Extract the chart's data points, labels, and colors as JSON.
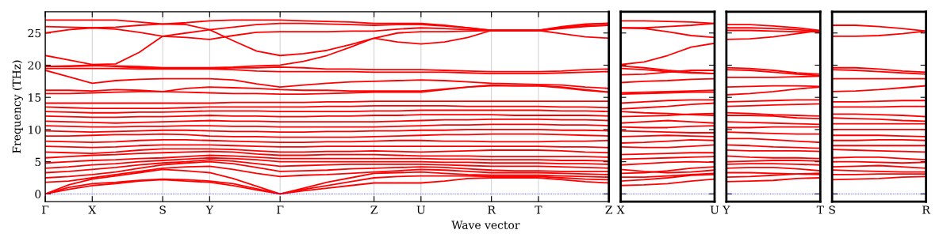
{
  "chart_data": [
    {
      "type": "line",
      "ylabel": "Frequency (THz)",
      "xlabel": "Wave vector",
      "categories": [
        "Γ",
        null,
        "X",
        null,
        null,
        "S",
        null,
        "Y",
        null,
        null,
        "Γ",
        null,
        null,
        null,
        "Z",
        null,
        "U",
        null,
        null,
        "R",
        null,
        "T",
        null,
        null,
        "Z"
      ],
      "ylim": [
        -1.2,
        28.3
      ],
      "yticks": [
        0,
        5,
        10,
        15,
        20,
        25
      ],
      "grid": "x",
      "line_style": "solid",
      "ref_lines": [
        {
          "axis": "y",
          "value": 0,
          "color": "#0000ff",
          "line_style": "dotted"
        }
      ],
      "series": [
        {
          "color": "#ff0000",
          "values": [
            0,
            0.7,
            1.3,
            1.6,
            2.0,
            2.2,
            2.0,
            1.8,
            1.3,
            0.6,
            0,
            0.5,
            0.9,
            1.3,
            1.7,
            1.7,
            1.7,
            2.0,
            2.4,
            2.5,
            2.5,
            2.5,
            2.2,
            1.9,
            1.7
          ]
        },
        {
          "color": "#ff0000",
          "values": [
            0,
            1.0,
            1.6,
            1.8,
            2.1,
            2.3,
            2.2,
            2.0,
            1.6,
            0.8,
            0,
            0.7,
            1.3,
            1.9,
            2.5,
            2.7,
            2.8,
            2.8,
            2.8,
            2.7,
            2.7,
            2.7,
            2.5,
            2.3,
            2.2
          ]
        },
        {
          "color": "#ff0000",
          "values": [
            0,
            1.4,
            2.3,
            2.8,
            3.3,
            3.8,
            3.6,
            3.3,
            2.4,
            1.2,
            0,
            0.9,
            1.8,
            2.5,
            3.2,
            3.3,
            3.4,
            3.2,
            3.0,
            2.9,
            2.9,
            2.9,
            2.8,
            2.7,
            2.6
          ]
        },
        {
          "color": "#ff0000",
          "values": [
            1.8,
            2.0,
            2.5,
            3.0,
            3.5,
            4.0,
            4.2,
            4.3,
            3.8,
            3.2,
            2.7,
            2.9,
            3.0,
            3.2,
            3.4,
            3.6,
            3.8,
            3.7,
            3.5,
            3.3,
            3.3,
            3.3,
            3.2,
            3.1,
            3.0
          ]
        },
        {
          "color": "#ff0000",
          "values": [
            2.5,
            2.7,
            3.0,
            3.4,
            4.0,
            4.5,
            4.8,
            5.0,
            4.7,
            4.1,
            3.5,
            3.6,
            3.7,
            3.9,
            4.0,
            4.1,
            4.2,
            4.1,
            3.9,
            3.7,
            3.6,
            3.6,
            3.5,
            3.5,
            3.5
          ]
        },
        {
          "color": "#ff0000",
          "values": [
            3.3,
            3.5,
            3.8,
            4.1,
            4.5,
            4.8,
            5.0,
            5.3,
            5.1,
            4.7,
            4.3,
            4.4,
            4.5,
            4.6,
            4.6,
            4.6,
            4.6,
            4.5,
            4.4,
            4.3,
            4.3,
            4.3,
            4.2,
            4.1,
            4.0
          ]
        },
        {
          "color": "#ff0000",
          "values": [
            4.0,
            4.2,
            4.5,
            4.7,
            5.0,
            5.2,
            5.4,
            5.6,
            5.5,
            5.3,
            5.0,
            5.0,
            5.0,
            5.0,
            5.0,
            5.0,
            5.0,
            4.9,
            4.9,
            4.8,
            4.8,
            4.8,
            4.7,
            4.7,
            4.6
          ]
        },
        {
          "color": "#ff0000",
          "values": [
            4.8,
            5.0,
            5.2,
            5.3,
            5.5,
            5.6,
            5.8,
            6.0,
            5.9,
            5.7,
            5.5,
            5.5,
            5.5,
            5.5,
            5.5,
            5.5,
            5.5,
            5.4,
            5.4,
            5.3,
            5.3,
            5.3,
            5.2,
            5.2,
            5.1
          ]
        },
        {
          "color": "#ff0000",
          "values": [
            5.6,
            5.8,
            6.0,
            6.1,
            6.3,
            6.4,
            6.5,
            6.6,
            6.5,
            6.2,
            6.0,
            6.0,
            6.1,
            6.1,
            6.1,
            6.0,
            5.9,
            5.9,
            5.9,
            5.8,
            5.8,
            5.8,
            5.8,
            5.8,
            5.7
          ]
        },
        {
          "color": "#ff0000",
          "values": [
            6.5,
            6.4,
            6.3,
            6.5,
            6.8,
            7.0,
            7.0,
            7.0,
            6.9,
            6.7,
            6.5,
            6.5,
            6.6,
            6.6,
            6.7,
            6.6,
            6.5,
            6.6,
            6.7,
            6.8,
            6.8,
            6.8,
            6.7,
            6.5,
            6.4
          ]
        },
        {
          "color": "#ff0000",
          "values": [
            7.4,
            7.3,
            7.2,
            7.3,
            7.5,
            7.6,
            7.6,
            7.6,
            7.5,
            7.4,
            7.3,
            7.3,
            7.4,
            7.4,
            7.4,
            7.4,
            7.4,
            7.4,
            7.4,
            7.4,
            7.4,
            7.4,
            7.3,
            7.3,
            7.2
          ]
        },
        {
          "color": "#ff0000",
          "values": [
            8.2,
            8.1,
            8.0,
            8.1,
            8.3,
            8.4,
            8.4,
            8.3,
            8.2,
            8.1,
            8.0,
            8.0,
            8.1,
            8.1,
            8.2,
            8.3,
            8.3,
            8.2,
            8.2,
            8.1,
            8.1,
            8.1,
            8.2,
            8.2,
            8.3
          ]
        },
        {
          "color": "#ff0000",
          "values": [
            9.0,
            9.0,
            9.1,
            9.2,
            9.2,
            9.3,
            9.2,
            9.0,
            8.9,
            8.9,
            8.8,
            8.8,
            8.8,
            8.8,
            8.9,
            9.0,
            9.1,
            9.2,
            9.2,
            9.3,
            9.3,
            9.3,
            9.2,
            9.1,
            9.0
          ]
        },
        {
          "color": "#ff0000",
          "values": [
            9.8,
            9.7,
            9.6,
            9.7,
            9.8,
            9.9,
            9.9,
            9.8,
            9.7,
            9.7,
            9.6,
            9.6,
            9.7,
            9.7,
            9.8,
            9.8,
            9.9,
            9.9,
            10.0,
            10.0,
            10.0,
            10.0,
            9.9,
            9.9,
            9.8
          ]
        },
        {
          "color": "#ff0000",
          "values": [
            10.6,
            10.5,
            10.4,
            10.4,
            10.5,
            10.5,
            10.6,
            10.6,
            10.5,
            10.5,
            10.4,
            10.4,
            10.4,
            10.4,
            10.4,
            10.5,
            10.6,
            10.7,
            10.7,
            10.8,
            10.8,
            10.8,
            10.7,
            10.7,
            10.6
          ]
        },
        {
          "color": "#ff0000",
          "values": [
            11.3,
            11.2,
            11.1,
            11.0,
            11.1,
            11.2,
            11.3,
            11.4,
            11.3,
            11.3,
            11.2,
            11.2,
            11.2,
            11.2,
            11.2,
            11.3,
            11.4,
            11.5,
            11.5,
            11.6,
            11.6,
            11.6,
            11.5,
            11.5,
            11.4
          ]
        },
        {
          "color": "#ff0000",
          "values": [
            12.1,
            12.0,
            11.9,
            11.9,
            12.0,
            12.0,
            12.1,
            12.2,
            12.1,
            12.1,
            12.0,
            12.0,
            12.1,
            12.1,
            12.2,
            12.2,
            12.3,
            12.3,
            12.3,
            12.3,
            12.2,
            12.2,
            12.2,
            12.2,
            12.1
          ]
        },
        {
          "color": "#ff0000",
          "values": [
            12.8,
            12.7,
            12.6,
            12.6,
            12.7,
            12.7,
            12.8,
            12.9,
            12.9,
            12.9,
            12.8,
            12.8,
            12.8,
            12.8,
            12.9,
            12.9,
            13.0,
            13.0,
            13.0,
            13.0,
            13.0,
            13.0,
            12.9,
            12.9,
            12.8
          ]
        },
        {
          "color": "#ff0000",
          "values": [
            13.5,
            13.4,
            13.3,
            13.3,
            13.3,
            13.3,
            13.4,
            13.5,
            13.5,
            13.5,
            13.5,
            13.5,
            13.6,
            13.6,
            13.7,
            13.7,
            13.7,
            13.7,
            13.6,
            13.6,
            13.6,
            13.6,
            13.5,
            13.5,
            13.4
          ]
        },
        {
          "color": "#ff0000",
          "values": [
            14.1,
            14.1,
            14.1,
            14.1,
            14.1,
            14.1,
            14.1,
            14.1,
            14.2,
            14.2,
            14.2,
            14.2,
            14.3,
            14.3,
            14.4,
            14.4,
            14.4,
            14.4,
            14.4,
            14.4,
            14.4,
            14.4,
            14.4,
            14.4,
            14.4
          ]
        },
        {
          "color": "#ff0000",
          "values": [
            15.6,
            15.6,
            15.7,
            15.8,
            15.9,
            15.9,
            16.4,
            16.6,
            16.5,
            16.4,
            16.2,
            16.1,
            16.1,
            16.0,
            16.0,
            16.0,
            16.0,
            16.3,
            16.6,
            16.8,
            16.8,
            16.8,
            16.5,
            16.1,
            15.8
          ]
        },
        {
          "color": "#ff0000",
          "values": [
            16.1,
            16.1,
            16.0,
            16.2,
            16.1,
            15.9,
            15.8,
            15.7,
            15.6,
            15.6,
            15.5,
            15.5,
            15.6,
            15.7,
            15.8,
            15.8,
            15.8,
            16.2,
            16.6,
            16.9,
            16.8,
            16.8,
            16.6,
            16.2,
            15.8
          ]
        },
        {
          "color": "#ff0000",
          "values": [
            19.2,
            18.2,
            17.2,
            17.6,
            17.8,
            17.9,
            17.9,
            17.9,
            17.7,
            17.1,
            16.6,
            16.9,
            17.2,
            17.4,
            17.5,
            17.6,
            17.7,
            17.6,
            17.4,
            17.2,
            17.1,
            17.0,
            16.9,
            16.6,
            16.4
          ]
        },
        {
          "color": "#ff0000",
          "values": [
            19.5,
            19.5,
            19.5,
            19.5,
            19.4,
            19.4,
            19.4,
            19.4,
            19.3,
            19.1,
            19.0,
            19.0,
            19.0,
            19.0,
            18.9,
            18.9,
            18.9,
            18.9,
            18.8,
            18.7,
            18.7,
            18.7,
            18.8,
            18.9,
            19.0
          ]
        },
        {
          "color": "#ff0000",
          "values": [
            19.8,
            19.9,
            20.0,
            19.8,
            19.6,
            19.5,
            19.5,
            19.5,
            19.6,
            19.6,
            19.7,
            19.6,
            19.4,
            19.4,
            19.3,
            19.3,
            19.3,
            19.2,
            19.1,
            19.0,
            19.0,
            19.0,
            19.1,
            19.3,
            19.4
          ]
        },
        {
          "color": "#ff0000",
          "values": [
            19.8,
            19.8,
            19.9,
            19.9,
            19.8,
            19.6,
            19.6,
            19.6,
            19.7,
            19.9,
            20.0,
            20.6,
            21.5,
            22.8,
            24.2,
            25.0,
            25.2,
            25.2,
            25.3,
            25.4,
            25.4,
            25.4,
            25.9,
            26.3,
            26.5
          ]
        },
        {
          "color": "#ff0000",
          "values": [
            21.5,
            20.8,
            20.1,
            20.2,
            22.0,
            24.5,
            25.0,
            25.5,
            23.8,
            22.2,
            21.5,
            21.8,
            22.3,
            23.2,
            24.2,
            23.6,
            23.3,
            23.6,
            24.3,
            25.4,
            25.4,
            25.4,
            24.9,
            24.4,
            24.2
          ]
        },
        {
          "color": "#ff0000",
          "values": [
            25.0,
            25.5,
            25.8,
            25.6,
            25.1,
            24.5,
            24.3,
            24.0,
            24.6,
            25.1,
            25.2,
            25.2,
            25.2,
            25.3,
            25.3,
            25.6,
            25.8,
            25.7,
            25.5,
            25.4,
            25.4,
            25.4,
            25.7,
            26.0,
            26.2
          ]
        },
        {
          "color": "#ff0000",
          "values": [
            26.0,
            25.9,
            25.8,
            25.9,
            26.2,
            26.4,
            26.3,
            25.5,
            25.9,
            26.3,
            26.5,
            26.5,
            26.4,
            26.3,
            26.2,
            26.3,
            26.3,
            26.1,
            25.8,
            25.4,
            25.4,
            25.4,
            25.8,
            26.1,
            26.2
          ]
        },
        {
          "color": "#ff0000",
          "values": [
            27.0,
            27.0,
            27.0,
            27.0,
            26.7,
            26.4,
            26.6,
            26.9,
            27.0,
            27.0,
            27.0,
            26.9,
            26.8,
            26.7,
            26.5,
            26.5,
            26.5,
            26.2,
            25.8,
            25.4,
            25.4,
            25.4,
            26.0,
            26.4,
            26.5
          ]
        }
      ]
    },
    {
      "type": "line",
      "categories": [
        "X",
        null,
        null,
        null,
        "U"
      ],
      "ylim": [
        -1.2,
        28.3
      ],
      "yticks": [
        0,
        5,
        10,
        15,
        20,
        25
      ],
      "tick_labels": "x",
      "line_style": "solid",
      "ref_lines": [
        {
          "axis": "y",
          "value": 0,
          "color": "#0000ff",
          "line_style": "dotted"
        }
      ],
      "series": [
        {
          "color": "#ff0000",
          "values": [
            26.9,
            26.9,
            26.8,
            26.7,
            26.5
          ]
        },
        {
          "color": "#ff0000",
          "values": [
            25.8,
            25.8,
            26.0,
            26.2,
            26.5
          ]
        },
        {
          "color": "#ff0000",
          "values": [
            25.8,
            25.7,
            25.2,
            24.6,
            24.3
          ]
        },
        {
          "color": "#ff0000",
          "values": [
            20.1,
            20.5,
            21.5,
            22.8,
            23.4
          ]
        },
        {
          "color": "#ff0000",
          "values": [
            19.9,
            19.6,
            19.2,
            18.9,
            18.7
          ]
        },
        {
          "color": "#ff0000",
          "values": [
            19.5,
            19.3,
            19.0,
            18.8,
            18.7
          ]
        },
        {
          "color": "#ff0000",
          "values": [
            18.5,
            18.6,
            18.9,
            19.2,
            19.2
          ]
        },
        {
          "color": "#ff0000",
          "values": [
            17.3,
            17.5,
            17.6,
            17.8,
            17.9
          ]
        },
        {
          "color": "#ff0000",
          "values": [
            15.7,
            15.8,
            15.9,
            16.0,
            16.1
          ]
        },
        {
          "color": "#ff0000",
          "values": [
            15.5,
            15.6,
            15.7,
            15.8,
            15.8
          ]
        },
        {
          "color": "#ff0000",
          "values": [
            14.1,
            14.3,
            14.5,
            14.6,
            14.6
          ]
        },
        {
          "color": "#ff0000",
          "values": [
            13.2,
            13.4,
            13.6,
            13.9,
            14.1
          ]
        },
        {
          "color": "#ff0000",
          "values": [
            12.8,
            12.6,
            12.5,
            12.3,
            12.2
          ]
        },
        {
          "color": "#ff0000",
          "values": [
            12.0,
            12.1,
            12.2,
            12.4,
            12.5
          ]
        },
        {
          "color": "#ff0000",
          "values": [
            11.0,
            11.2,
            11.4,
            11.2,
            11.0
          ]
        },
        {
          "color": "#ff0000",
          "values": [
            10.4,
            10.3,
            10.3,
            10.5,
            10.6
          ]
        },
        {
          "color": "#ff0000",
          "values": [
            9.8,
            9.7,
            9.6,
            9.5,
            9.5
          ]
        },
        {
          "color": "#ff0000",
          "values": [
            8.9,
            9.0,
            9.1,
            9.0,
            8.9
          ]
        },
        {
          "color": "#ff0000",
          "values": [
            7.9,
            8.0,
            8.2,
            8.4,
            8.3
          ]
        },
        {
          "color": "#ff0000",
          "values": [
            7.3,
            7.2,
            7.2,
            7.4,
            7.6
          ]
        },
        {
          "color": "#ff0000",
          "values": [
            6.1,
            6.2,
            6.3,
            6.4,
            6.4
          ]
        },
        {
          "color": "#ff0000",
          "values": [
            5.4,
            5.5,
            5.6,
            5.7,
            5.8
          ]
        },
        {
          "color": "#ff0000",
          "values": [
            4.5,
            4.7,
            4.9,
            5.0,
            4.9
          ]
        },
        {
          "color": "#ff0000",
          "values": [
            3.8,
            3.5,
            3.3,
            3.4,
            3.7
          ]
        },
        {
          "color": "#ff0000",
          "values": [
            3.2,
            3.3,
            3.6,
            4.0,
            4.2
          ]
        },
        {
          "color": "#ff0000",
          "values": [
            2.6,
            2.6,
            2.8,
            3.0,
            3.2
          ]
        },
        {
          "color": "#ff0000",
          "values": [
            2.0,
            2.2,
            2.5,
            2.9,
            3.0
          ]
        },
        {
          "color": "#ff0000",
          "values": [
            1.3,
            1.4,
            1.6,
            2.0,
            2.3
          ]
        }
      ]
    },
    {
      "type": "line",
      "categories": [
        "Y",
        null,
        null,
        null,
        "T"
      ],
      "ylim": [
        -1.2,
        28.3
      ],
      "yticks": [
        0,
        5,
        10,
        15,
        20,
        25
      ],
      "tick_labels": "x",
      "line_style": "solid",
      "ref_lines": [
        {
          "axis": "y",
          "value": 0,
          "color": "#0000ff",
          "line_style": "dotted"
        }
      ],
      "series": [
        {
          "color": "#ff0000",
          "values": [
            26.3,
            26.3,
            26.1,
            25.8,
            25.4
          ]
        },
        {
          "color": "#ff0000",
          "values": [
            25.8,
            25.8,
            25.7,
            25.5,
            25.3
          ]
        },
        {
          "color": "#ff0000",
          "values": [
            25.4,
            25.4,
            25.3,
            25.2,
            25.2
          ]
        },
        {
          "color": "#ff0000",
          "values": [
            24.0,
            24.1,
            24.4,
            24.9,
            25.4
          ]
        },
        {
          "color": "#ff0000",
          "values": [
            19.6,
            19.5,
            19.2,
            18.8,
            18.6
          ]
        },
        {
          "color": "#ff0000",
          "values": [
            19.3,
            19.2,
            18.9,
            18.6,
            18.4
          ]
        },
        {
          "color": "#ff0000",
          "values": [
            18.1,
            18.1,
            18.1,
            18.2,
            18.3
          ]
        },
        {
          "color": "#ff0000",
          "values": [
            16.6,
            16.7,
            16.8,
            16.8,
            16.7
          ]
        },
        {
          "color": "#ff0000",
          "values": [
            15.4,
            15.6,
            15.9,
            16.3,
            16.6
          ]
        },
        {
          "color": "#ff0000",
          "values": [
            14.3,
            14.4,
            14.5,
            14.6,
            14.6
          ]
        },
        {
          "color": "#ff0000",
          "values": [
            13.6,
            13.7,
            13.8,
            13.9,
            14.0
          ]
        },
        {
          "color": "#ff0000",
          "values": [
            12.6,
            12.5,
            12.3,
            12.2,
            12.1
          ]
        },
        {
          "color": "#ff0000",
          "values": [
            12.2,
            12.2,
            12.1,
            11.8,
            11.7
          ]
        },
        {
          "color": "#ff0000",
          "values": [
            11.2,
            11.1,
            11.0,
            10.9,
            10.8
          ]
        },
        {
          "color": "#ff0000",
          "values": [
            10.3,
            10.3,
            10.4,
            10.4,
            10.4
          ]
        },
        {
          "color": "#ff0000",
          "values": [
            9.6,
            9.5,
            9.4,
            9.3,
            9.3
          ]
        },
        {
          "color": "#ff0000",
          "values": [
            8.6,
            8.6,
            8.4,
            8.2,
            8.0
          ]
        },
        {
          "color": "#ff0000",
          "values": [
            7.6,
            7.5,
            7.3,
            7.2,
            7.1
          ]
        },
        {
          "color": "#ff0000",
          "values": [
            6.8,
            6.7,
            6.7,
            6.7,
            6.6
          ]
        },
        {
          "color": "#ff0000",
          "values": [
            5.9,
            5.7,
            5.6,
            5.6,
            5.5
          ]
        },
        {
          "color": "#ff0000",
          "values": [
            5.0,
            5.1,
            5.2,
            5.2,
            5.1
          ]
        },
        {
          "color": "#ff0000",
          "values": [
            4.6,
            4.7,
            4.7,
            4.6,
            4.5
          ]
        },
        {
          "color": "#ff0000",
          "values": [
            4.0,
            4.1,
            4.1,
            3.9,
            3.6
          ]
        },
        {
          "color": "#ff0000",
          "values": [
            3.3,
            3.3,
            3.2,
            3.1,
            3.0
          ]
        },
        {
          "color": "#ff0000",
          "values": [
            2.6,
            2.7,
            2.9,
            3.1,
            3.2
          ]
        },
        {
          "color": "#ff0000",
          "values": [
            1.9,
            2.0,
            2.1,
            2.4,
            2.5
          ]
        }
      ]
    },
    {
      "type": "line",
      "categories": [
        "S",
        null,
        null,
        null,
        "R"
      ],
      "ylim": [
        -1.2,
        28.3
      ],
      "yticks": [
        0,
        5,
        10,
        15,
        20,
        25
      ],
      "tick_labels": "x",
      "line_style": "solid",
      "ref_lines": [
        {
          "axis": "y",
          "value": 0,
          "color": "#0000ff",
          "line_style": "dotted"
        }
      ],
      "series": [
        {
          "color": "#ff0000",
          "values": [
            26.2,
            26.2,
            26.0,
            25.7,
            25.3
          ]
        },
        {
          "color": "#ff0000",
          "values": [
            24.5,
            24.5,
            24.6,
            24.9,
            25.3
          ]
        },
        {
          "color": "#ff0000",
          "values": [
            19.6,
            19.6,
            19.4,
            19.1,
            18.9
          ]
        },
        {
          "color": "#ff0000",
          "values": [
            19.3,
            19.2,
            19.0,
            18.8,
            18.6
          ]
        },
        {
          "color": "#ff0000",
          "values": [
            17.9,
            17.9,
            17.9,
            17.9,
            17.9
          ]
        },
        {
          "color": "#ff0000",
          "values": [
            15.9,
            16.0,
            16.2,
            16.5,
            16.8
          ]
        },
        {
          "color": "#ff0000",
          "values": [
            14.3,
            14.3,
            14.4,
            14.5,
            14.5
          ]
        },
        {
          "color": "#ff0000",
          "values": [
            13.5,
            13.5,
            13.5,
            13.6,
            13.6
          ]
        },
        {
          "color": "#ff0000",
          "values": [
            12.4,
            12.4,
            12.3,
            12.2,
            12.0
          ]
        },
        {
          "color": "#ff0000",
          "values": [
            11.8,
            11.7,
            11.6,
            11.4,
            11.3
          ]
        },
        {
          "color": "#ff0000",
          "values": [
            10.9,
            10.9,
            10.9,
            10.9,
            10.9
          ]
        },
        {
          "color": "#ff0000",
          "values": [
            10.0,
            10.0,
            10.0,
            10.0,
            10.0
          ]
        },
        {
          "color": "#ff0000",
          "values": [
            9.1,
            9.1,
            9.1,
            9.0,
            8.9
          ]
        },
        {
          "color": "#ff0000",
          "values": [
            8.3,
            8.3,
            8.4,
            8.4,
            8.3
          ]
        },
        {
          "color": "#ff0000",
          "values": [
            7.5,
            7.5,
            7.5,
            7.5,
            7.5
          ]
        },
        {
          "color": "#ff0000",
          "values": [
            6.9,
            6.8,
            6.7,
            6.6,
            6.5
          ]
        },
        {
          "color": "#ff0000",
          "values": [
            5.6,
            5.7,
            5.7,
            5.5,
            5.3
          ]
        },
        {
          "color": "#ff0000",
          "values": [
            5.0,
            5.0,
            4.9,
            4.8,
            4.9
          ]
        },
        {
          "color": "#ff0000",
          "values": [
            4.2,
            4.3,
            4.4,
            4.2,
            4.0
          ]
        },
        {
          "color": "#ff0000",
          "values": [
            3.7,
            3.6,
            3.5,
            3.4,
            3.4
          ]
        },
        {
          "color": "#ff0000",
          "values": [
            3.0,
            3.0,
            3.1,
            3.1,
            3.1
          ]
        },
        {
          "color": "#ff0000",
          "values": [
            2.2,
            2.3,
            2.4,
            2.6,
            2.7
          ]
        }
      ]
    }
  ]
}
